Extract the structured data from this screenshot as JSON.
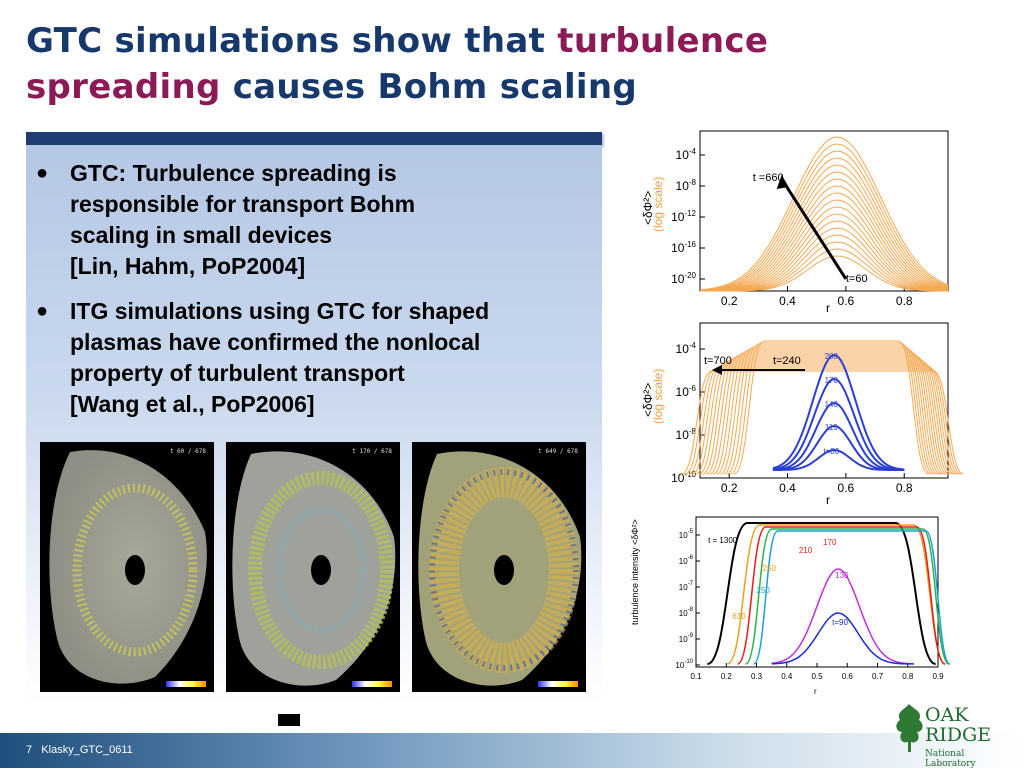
{
  "slide": {
    "title_part1": "GTC simulations show that ",
    "title_highlight1": "turbulence",
    "title_highlight2": "spreading",
    "title_part2": " causes Bohm scaling",
    "bullets": [
      {
        "lines": [
          "GTC: Turbulence spreading is",
          "responsible for transport Bohm",
          "scaling in small devices",
          "[Lin, Hahm, PoP2004]"
        ]
      },
      {
        "lines": [
          "ITG simulations using GTC for shaped",
          "plasmas have confirmed the nonlocal",
          "property of turbulent transport",
          "[Wang et al., PoP2006]"
        ]
      }
    ],
    "sim_times": [
      "t 60 / 678",
      "t 170 / 678",
      "t 649 / 678"
    ],
    "footer": {
      "page": "7",
      "code": "Klasky_GTC_0611"
    },
    "logo": {
      "line1": "OAK",
      "line2": "RIDGE",
      "line3": "National Laboratory"
    }
  },
  "chart_data": [
    {
      "type": "line",
      "xlabel": "r",
      "ylabel": "<δΦ²>",
      "ylabel_note": "(log scale)",
      "xlim": [
        0.1,
        0.95
      ],
      "xticks": [
        "0.2",
        "0.4",
        "0.6",
        "0.8"
      ],
      "yticks": [
        "10^-4",
        "10^-8",
        "10^-12",
        "10^-16",
        "10^-20"
      ],
      "annotations": [
        "t =660",
        "t=60"
      ],
      "colors": {
        "curves": "#f4a850"
      }
    },
    {
      "type": "line",
      "xlabel": "r",
      "ylabel": "<δΦ²>",
      "ylabel_note": "(log scale)",
      "xlim": [
        0.1,
        0.95
      ],
      "xticks": [
        "0.2",
        "0.4",
        "0.6",
        "0.8"
      ],
      "yticks": [
        "10^-4",
        "10^-6",
        "10^-8",
        "10^-10"
      ],
      "annotations": [
        "t=700",
        "t=240"
      ],
      "series_labels": [
        "200",
        "170",
        "140",
        "110",
        "t=80"
      ],
      "colors": {
        "orange": "#f4a850",
        "blue": "#2b3fd6"
      }
    },
    {
      "type": "line",
      "xlabel": "r",
      "ylabel": "turbulence intensity <δΦ²>",
      "xlim": [
        0.1,
        0.9
      ],
      "xticks": [
        "0.1",
        "0.2",
        "0.3",
        "0.4",
        "0.5",
        "0.6",
        "0.7",
        "0.8",
        "0.9"
      ],
      "yticks": [
        "10^-5",
        "10^-6",
        "10^-7",
        "10^-8",
        "10^-9",
        "10^-10"
      ],
      "series_labels": [
        "t = 1300",
        "170",
        "210",
        "130",
        "t=90",
        "250",
        "250",
        "630"
      ],
      "colors": [
        "#000000",
        "#e8a020",
        "#e81c1c",
        "#2bb24c",
        "#1aa0d8",
        "#c030d8",
        "#1a2ed8"
      ]
    }
  ]
}
